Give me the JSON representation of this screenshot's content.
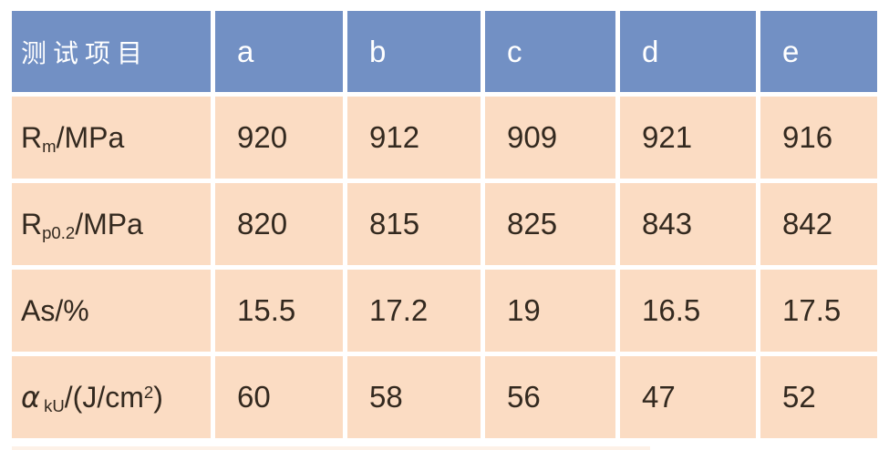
{
  "chart_data": {
    "type": "table",
    "columns": [
      "测试项目",
      "a",
      "b",
      "c",
      "d",
      "e"
    ],
    "rows": [
      [
        "Rm/MPa",
        920,
        912,
        909,
        921,
        916
      ],
      [
        "Rp0.2/MPa",
        820,
        815,
        825,
        843,
        842
      ],
      [
        "As/%",
        15.5,
        17.2,
        19,
        16.5,
        17.5
      ],
      [
        "αkU/(J/cm2)",
        60,
        58,
        56,
        47,
        52
      ]
    ]
  },
  "table": {
    "header": {
      "row_label": "测试项目",
      "columns": [
        "a",
        "b",
        "c",
        "d",
        "e"
      ]
    },
    "rows": [
      {
        "label_parts": [
          {
            "t": "R",
            "s": "plain"
          },
          {
            "t": "m",
            "s": "sub"
          },
          {
            "t": "/MPa",
            "s": "plain"
          }
        ],
        "values": [
          "920",
          "912",
          "909",
          "921",
          "916"
        ]
      },
      {
        "label_parts": [
          {
            "t": "R",
            "s": "plain"
          },
          {
            "t": "p0.2",
            "s": "sub"
          },
          {
            "t": "/MPa",
            "s": "plain"
          }
        ],
        "values": [
          "820",
          "815",
          "825",
          "843",
          "842"
        ]
      },
      {
        "label_parts": [
          {
            "t": "As/%",
            "s": "plain"
          }
        ],
        "values": [
          "15.5",
          "17.2",
          "19",
          "16.5",
          "17.5"
        ]
      },
      {
        "label_parts": [
          {
            "t": "α",
            "s": "italic"
          },
          {
            "t": "kU",
            "s": "sub-gap"
          },
          {
            "t": "/(J/cm",
            "s": "plain"
          },
          {
            "t": "2",
            "s": "sup"
          },
          {
            "t": ")",
            "s": "plain"
          }
        ],
        "values": [
          "60",
          "58",
          "56",
          "47",
          "52"
        ]
      }
    ]
  },
  "colors": {
    "header_bg": "#7290C4",
    "header_text": "#FFFFFF",
    "body_bg": "#FBDCC3",
    "body_text": "#33291F",
    "gap": "#FFFFFF"
  }
}
